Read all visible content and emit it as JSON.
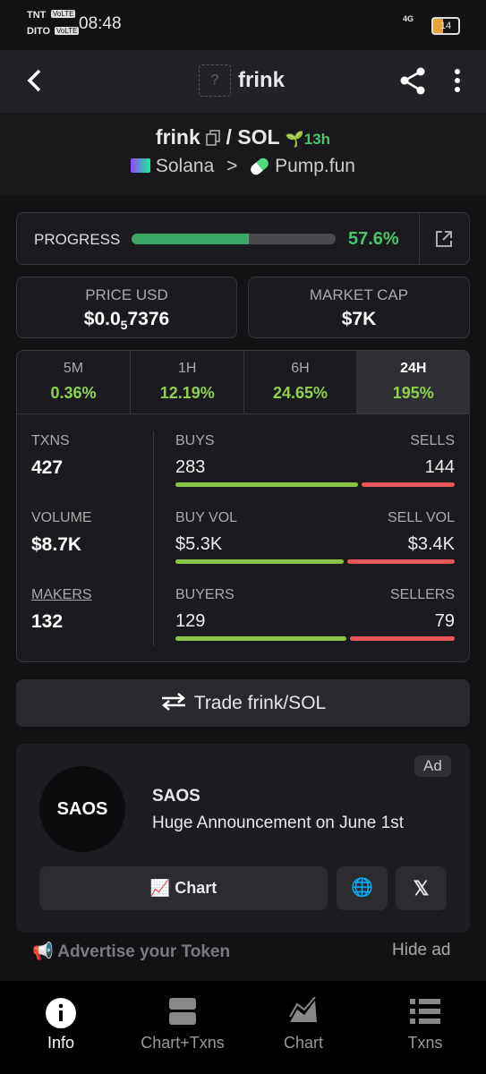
{
  "status_bar": {
    "carrier_1": "TNT",
    "volte_1": "VoLTE",
    "carrier_2": "DITO",
    "volte_2": "VoLTE",
    "time": "08:48",
    "network": "4G",
    "battery": "14"
  },
  "header": {
    "title": "frink",
    "icon_placeholder": "?"
  },
  "pair": {
    "base": "frink",
    "quote": "/ SOL",
    "age": "13h",
    "chain": "Solana",
    "separator": ">",
    "dex": "Pump.fun"
  },
  "progress": {
    "label": "PROGRESS",
    "value": 57.6,
    "value_label": "57.6%"
  },
  "price": {
    "label": "PRICE USD",
    "value_prefix": "$0.0",
    "subscript": "5",
    "value_suffix": "7376"
  },
  "market_cap": {
    "label": "MARKET CAP",
    "value": "$7K"
  },
  "timeframes": [
    {
      "label": "5M",
      "change": "0.36%"
    },
    {
      "label": "1H",
      "change": "12.19%"
    },
    {
      "label": "6H",
      "change": "24.65%"
    },
    {
      "label": "24H",
      "change": "195%"
    }
  ],
  "stats": {
    "txns": {
      "label": "TXNS",
      "value": "427"
    },
    "volume": {
      "label": "VOLUME",
      "value": "$8.7K"
    },
    "makers": {
      "label": "MAKERS",
      "value": "132"
    },
    "buys_sells": {
      "left_label": "BUYS",
      "right_label": "SELLS",
      "left_value": 283,
      "right_value": 144
    },
    "buy_sell_vol": {
      "left_label": "BUY VOL",
      "right_label": "SELL VOL",
      "left_value": "$5.3K",
      "right_value": "$3.4K"
    },
    "buyers_sellers": {
      "left_label": "BUYERS",
      "right_label": "SELLERS",
      "left_value": 129,
      "right_value": 79
    }
  },
  "trade_button": "Trade frink/SOL",
  "ad": {
    "badge": "Ad",
    "logo_text": "SAOS",
    "name": "SAOS",
    "text": "Huge Announcement on June 1st",
    "chart_button": "Chart"
  },
  "footer_links": {
    "advertise": "Advertise your Token",
    "hide": "Hide ad"
  },
  "nav": [
    "Info",
    "Chart+Txns",
    "Chart",
    "Txns"
  ]
}
